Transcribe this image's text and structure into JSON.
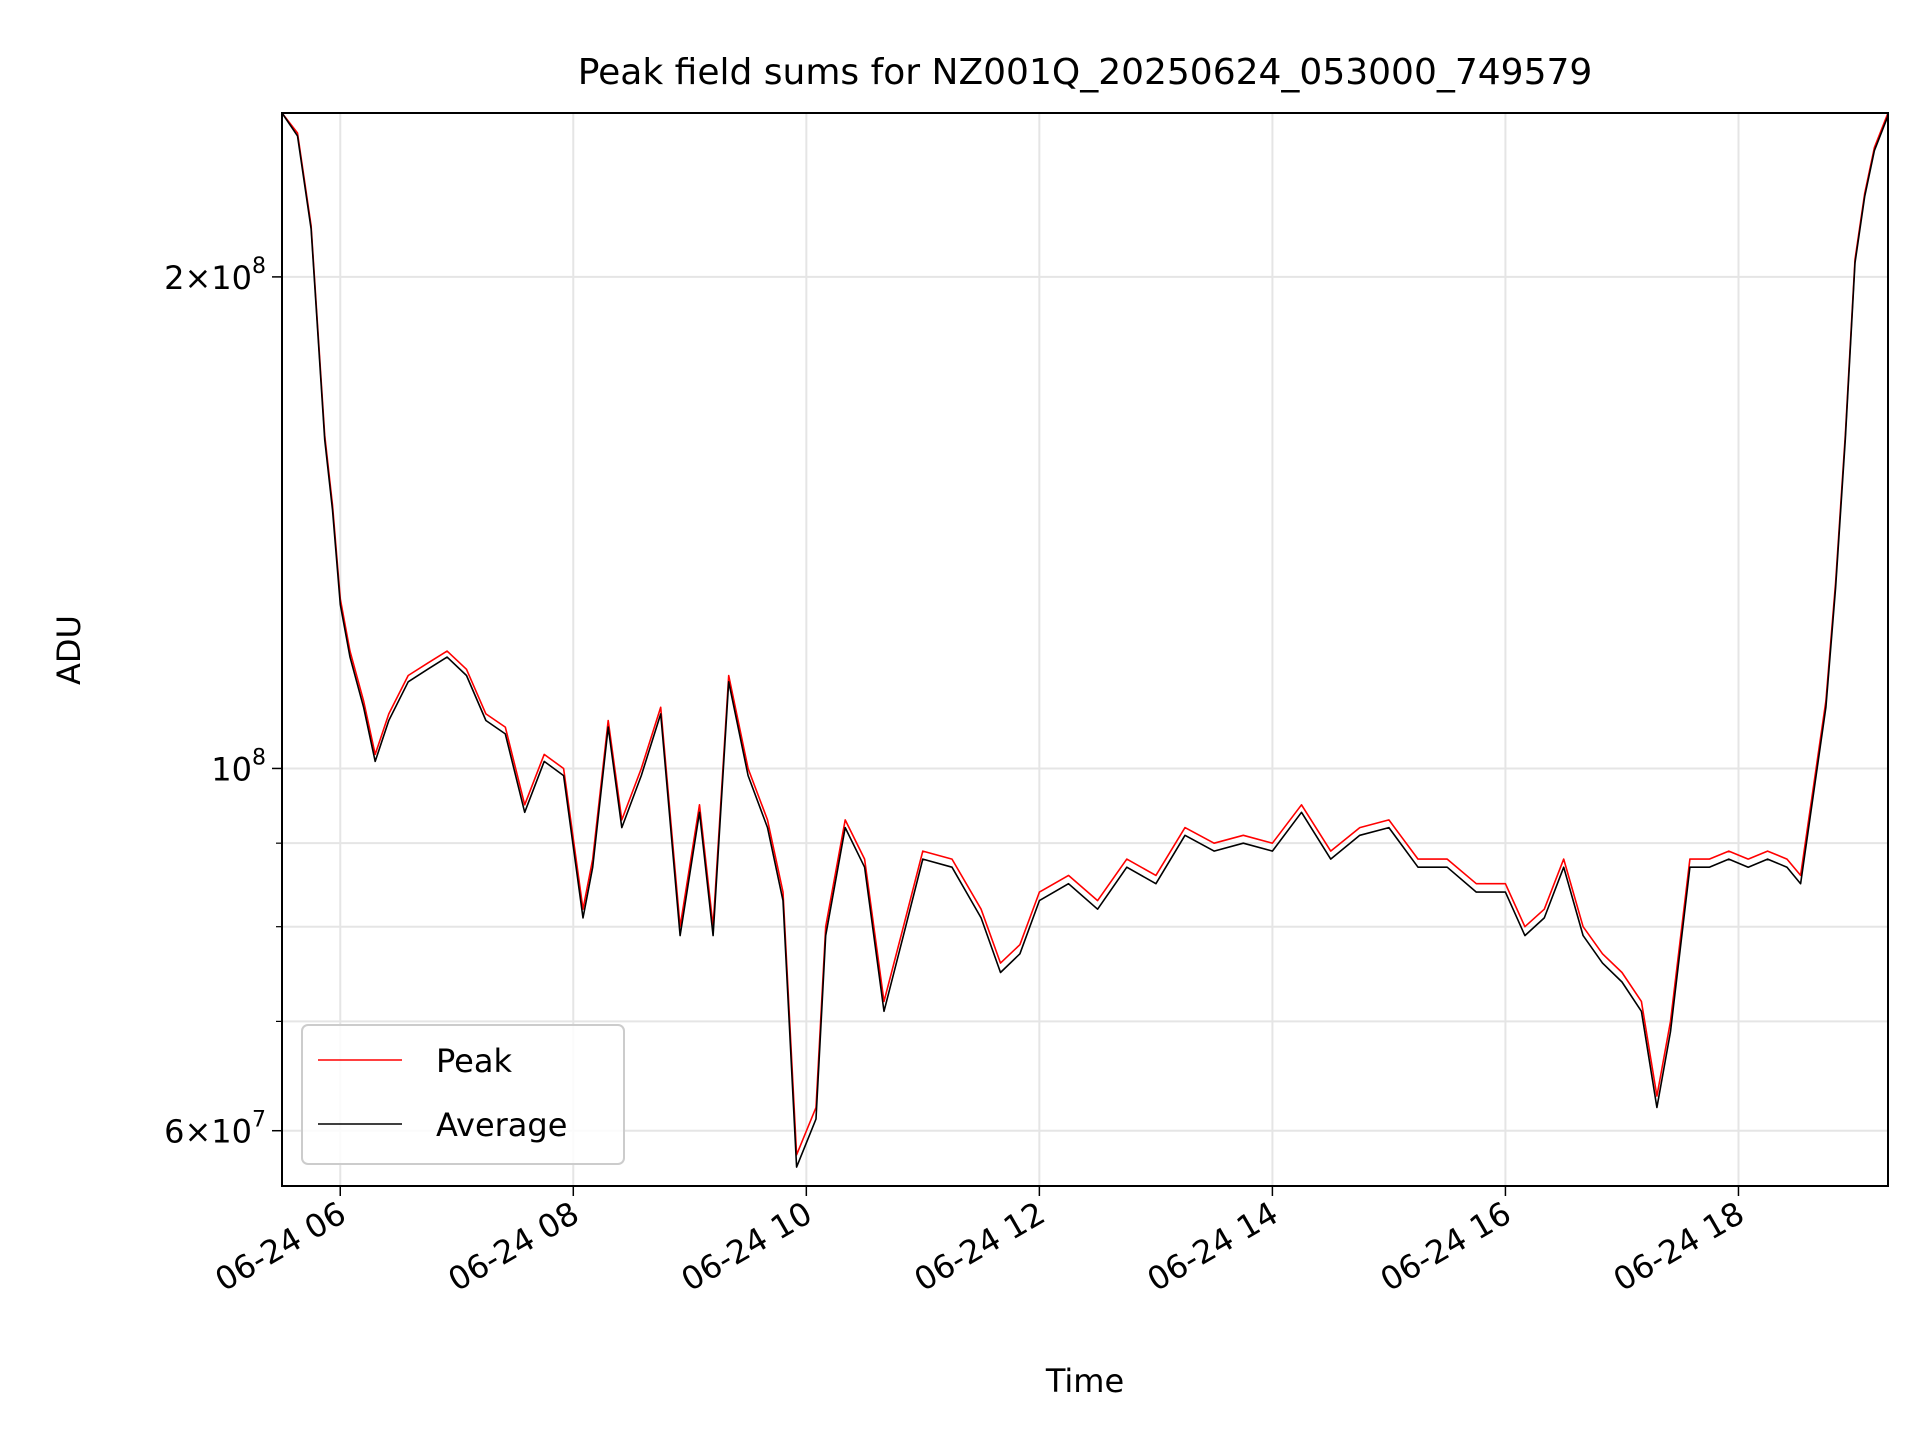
{
  "chart_data": {
    "type": "line",
    "title": "Peak field sums for NZ001Q_20250624_053000_749579",
    "xlabel": "Time",
    "ylabel": "ADU",
    "y_scale": "log",
    "grid": true,
    "legend_position": "lower-left",
    "xlim": [
      "2025-06-24 05:30",
      "2025-06-24 19:17"
    ],
    "ylim": [
      55500000,
      252000000
    ],
    "x_ticks": [
      "06-24 06",
      "06-24 08",
      "06-24 10",
      "06-24 12",
      "06-24 14",
      "06-24 16",
      "06-24 18"
    ],
    "y_tick_labels": [
      {
        "value": 200000000,
        "mantissa": "2",
        "exponent": "8"
      },
      {
        "value": 100000000,
        "mantissa": "",
        "exponent": "8"
      },
      {
        "value": 60000000,
        "mantissa": "6",
        "exponent": "7"
      }
    ],
    "y_minor_ticks": [
      70000000,
      80000000,
      90000000
    ],
    "series": [
      {
        "name": "Peak",
        "color": "#ff0000",
        "points": [
          [
            "2025-06-24 05:30",
            252000000
          ],
          [
            "2025-06-24 05:38",
            245000000
          ],
          [
            "2025-06-24 05:45",
            215000000
          ],
          [
            "2025-06-24 05:52",
            160000000
          ],
          [
            "2025-06-24 05:56",
            145000000
          ],
          [
            "2025-06-24 06:00",
            127000000
          ],
          [
            "2025-06-24 06:05",
            118000000
          ],
          [
            "2025-06-24 06:12",
            110000000
          ],
          [
            "2025-06-24 06:18",
            102000000
          ],
          [
            "2025-06-24 06:25",
            108000000
          ],
          [
            "2025-06-24 06:35",
            114000000
          ],
          [
            "2025-06-24 06:45",
            116000000
          ],
          [
            "2025-06-24 06:55",
            118000000
          ],
          [
            "2025-06-24 07:05",
            115000000
          ],
          [
            "2025-06-24 07:15",
            108000000
          ],
          [
            "2025-06-24 07:25",
            106000000
          ],
          [
            "2025-06-24 07:35",
            95000000
          ],
          [
            "2025-06-24 07:45",
            102000000
          ],
          [
            "2025-06-24 07:55",
            100000000
          ],
          [
            "2025-06-24 08:05",
            82000000
          ],
          [
            "2025-06-24 08:10",
            88000000
          ],
          [
            "2025-06-24 08:18",
            107000000
          ],
          [
            "2025-06-24 08:25",
            93000000
          ],
          [
            "2025-06-24 08:35",
            100000000
          ],
          [
            "2025-06-24 08:45",
            109000000
          ],
          [
            "2025-06-24 08:55",
            80000000
          ],
          [
            "2025-06-24 09:05",
            95000000
          ],
          [
            "2025-06-24 09:12",
            80000000
          ],
          [
            "2025-06-24 09:20",
            114000000
          ],
          [
            "2025-06-24 09:30",
            100000000
          ],
          [
            "2025-06-24 09:40",
            93000000
          ],
          [
            "2025-06-24 09:48",
            84000000
          ],
          [
            "2025-06-24 09:55",
            58000000
          ],
          [
            "2025-06-24 10:05",
            62000000
          ],
          [
            "2025-06-24 10:10",
            80000000
          ],
          [
            "2025-06-24 10:20",
            93000000
          ],
          [
            "2025-06-24 10:30",
            88000000
          ],
          [
            "2025-06-24 10:40",
            72000000
          ],
          [
            "2025-06-24 10:50",
            80000000
          ],
          [
            "2025-06-24 11:00",
            89000000
          ],
          [
            "2025-06-24 11:15",
            88000000
          ],
          [
            "2025-06-24 11:30",
            82000000
          ],
          [
            "2025-06-24 11:40",
            76000000
          ],
          [
            "2025-06-24 11:50",
            78000000
          ],
          [
            "2025-06-24 12:00",
            84000000
          ],
          [
            "2025-06-24 12:15",
            86000000
          ],
          [
            "2025-06-24 12:30",
            83000000
          ],
          [
            "2025-06-24 12:45",
            88000000
          ],
          [
            "2025-06-24 13:00",
            86000000
          ],
          [
            "2025-06-24 13:15",
            92000000
          ],
          [
            "2025-06-24 13:30",
            90000000
          ],
          [
            "2025-06-24 13:45",
            91000000
          ],
          [
            "2025-06-24 14:00",
            90000000
          ],
          [
            "2025-06-24 14:15",
            95000000
          ],
          [
            "2025-06-24 14:30",
            89000000
          ],
          [
            "2025-06-24 14:45",
            92000000
          ],
          [
            "2025-06-24 15:00",
            93000000
          ],
          [
            "2025-06-24 15:15",
            88000000
          ],
          [
            "2025-06-24 15:30",
            88000000
          ],
          [
            "2025-06-24 15:45",
            85000000
          ],
          [
            "2025-06-24 16:00",
            85000000
          ],
          [
            "2025-06-24 16:10",
            80000000
          ],
          [
            "2025-06-24 16:20",
            82000000
          ],
          [
            "2025-06-24 16:30",
            88000000
          ],
          [
            "2025-06-24 16:40",
            80000000
          ],
          [
            "2025-06-24 16:50",
            77000000
          ],
          [
            "2025-06-24 17:00",
            75000000
          ],
          [
            "2025-06-24 17:10",
            72000000
          ],
          [
            "2025-06-24 17:18",
            63000000
          ],
          [
            "2025-06-24 17:25",
            70000000
          ],
          [
            "2025-06-24 17:35",
            88000000
          ],
          [
            "2025-06-24 17:45",
            88000000
          ],
          [
            "2025-06-24 17:55",
            89000000
          ],
          [
            "2025-06-24 18:05",
            88000000
          ],
          [
            "2025-06-24 18:15",
            89000000
          ],
          [
            "2025-06-24 18:25",
            88000000
          ],
          [
            "2025-06-24 18:32",
            86000000
          ],
          [
            "2025-06-24 18:40",
            100000000
          ],
          [
            "2025-06-24 18:45",
            110000000
          ],
          [
            "2025-06-24 18:50",
            130000000
          ],
          [
            "2025-06-24 18:55",
            160000000
          ],
          [
            "2025-06-24 19:00",
            205000000
          ],
          [
            "2025-06-24 19:05",
            225000000
          ],
          [
            "2025-06-24 19:10",
            240000000
          ],
          [
            "2025-06-24 19:17",
            252000000
          ]
        ]
      },
      {
        "name": "Average",
        "color": "#000000",
        "points": [
          [
            "2025-06-24 05:30",
            252000000
          ],
          [
            "2025-06-24 05:38",
            244000000
          ],
          [
            "2025-06-24 05:45",
            214000000
          ],
          [
            "2025-06-24 05:52",
            159000000
          ],
          [
            "2025-06-24 05:56",
            144000000
          ],
          [
            "2025-06-24 06:00",
            126000000
          ],
          [
            "2025-06-24 06:05",
            117000000
          ],
          [
            "2025-06-24 06:12",
            109000000
          ],
          [
            "2025-06-24 06:18",
            101000000
          ],
          [
            "2025-06-24 06:25",
            107000000
          ],
          [
            "2025-06-24 06:35",
            113000000
          ],
          [
            "2025-06-24 06:45",
            115000000
          ],
          [
            "2025-06-24 06:55",
            117000000
          ],
          [
            "2025-06-24 07:05",
            114000000
          ],
          [
            "2025-06-24 07:15",
            107000000
          ],
          [
            "2025-06-24 07:25",
            105000000
          ],
          [
            "2025-06-24 07:35",
            94000000
          ],
          [
            "2025-06-24 07:45",
            101000000
          ],
          [
            "2025-06-24 07:55",
            99000000
          ],
          [
            "2025-06-24 08:05",
            81000000
          ],
          [
            "2025-06-24 08:10",
            87000000
          ],
          [
            "2025-06-24 08:18",
            106000000
          ],
          [
            "2025-06-24 08:25",
            92000000
          ],
          [
            "2025-06-24 08:35",
            99000000
          ],
          [
            "2025-06-24 08:45",
            108000000
          ],
          [
            "2025-06-24 08:55",
            79000000
          ],
          [
            "2025-06-24 09:05",
            94000000
          ],
          [
            "2025-06-24 09:12",
            79000000
          ],
          [
            "2025-06-24 09:20",
            113000000
          ],
          [
            "2025-06-24 09:30",
            99000000
          ],
          [
            "2025-06-24 09:40",
            92000000
          ],
          [
            "2025-06-24 09:48",
            83000000
          ],
          [
            "2025-06-24 09:55",
            57000000
          ],
          [
            "2025-06-24 10:05",
            61000000
          ],
          [
            "2025-06-24 10:10",
            79000000
          ],
          [
            "2025-06-24 10:20",
            92000000
          ],
          [
            "2025-06-24 10:30",
            87000000
          ],
          [
            "2025-06-24 10:40",
            71000000
          ],
          [
            "2025-06-24 10:50",
            79000000
          ],
          [
            "2025-06-24 11:00",
            88000000
          ],
          [
            "2025-06-24 11:15",
            87000000
          ],
          [
            "2025-06-24 11:30",
            81000000
          ],
          [
            "2025-06-24 11:40",
            75000000
          ],
          [
            "2025-06-24 11:50",
            77000000
          ],
          [
            "2025-06-24 12:00",
            83000000
          ],
          [
            "2025-06-24 12:15",
            85000000
          ],
          [
            "2025-06-24 12:30",
            82000000
          ],
          [
            "2025-06-24 12:45",
            87000000
          ],
          [
            "2025-06-24 13:00",
            85000000
          ],
          [
            "2025-06-24 13:15",
            91000000
          ],
          [
            "2025-06-24 13:30",
            89000000
          ],
          [
            "2025-06-24 13:45",
            90000000
          ],
          [
            "2025-06-24 14:00",
            89000000
          ],
          [
            "2025-06-24 14:15",
            94000000
          ],
          [
            "2025-06-24 14:30",
            88000000
          ],
          [
            "2025-06-24 14:45",
            91000000
          ],
          [
            "2025-06-24 15:00",
            92000000
          ],
          [
            "2025-06-24 15:15",
            87000000
          ],
          [
            "2025-06-24 15:30",
            87000000
          ],
          [
            "2025-06-24 15:45",
            84000000
          ],
          [
            "2025-06-24 16:00",
            84000000
          ],
          [
            "2025-06-24 16:10",
            79000000
          ],
          [
            "2025-06-24 16:20",
            81000000
          ],
          [
            "2025-06-24 16:30",
            87000000
          ],
          [
            "2025-06-24 16:40",
            79000000
          ],
          [
            "2025-06-24 16:50",
            76000000
          ],
          [
            "2025-06-24 17:00",
            74000000
          ],
          [
            "2025-06-24 17:10",
            71000000
          ],
          [
            "2025-06-24 17:18",
            62000000
          ],
          [
            "2025-06-24 17:25",
            69000000
          ],
          [
            "2025-06-24 17:35",
            87000000
          ],
          [
            "2025-06-24 17:45",
            87000000
          ],
          [
            "2025-06-24 17:55",
            88000000
          ],
          [
            "2025-06-24 18:05",
            87000000
          ],
          [
            "2025-06-24 18:15",
            88000000
          ],
          [
            "2025-06-24 18:25",
            87000000
          ],
          [
            "2025-06-24 18:32",
            85000000
          ],
          [
            "2025-06-24 18:40",
            99000000
          ],
          [
            "2025-06-24 18:45",
            109000000
          ],
          [
            "2025-06-24 18:50",
            129000000
          ],
          [
            "2025-06-24 18:55",
            159000000
          ],
          [
            "2025-06-24 19:00",
            204000000
          ],
          [
            "2025-06-24 19:05",
            224000000
          ],
          [
            "2025-06-24 19:10",
            239000000
          ],
          [
            "2025-06-24 19:17",
            251000000
          ]
        ]
      }
    ]
  }
}
